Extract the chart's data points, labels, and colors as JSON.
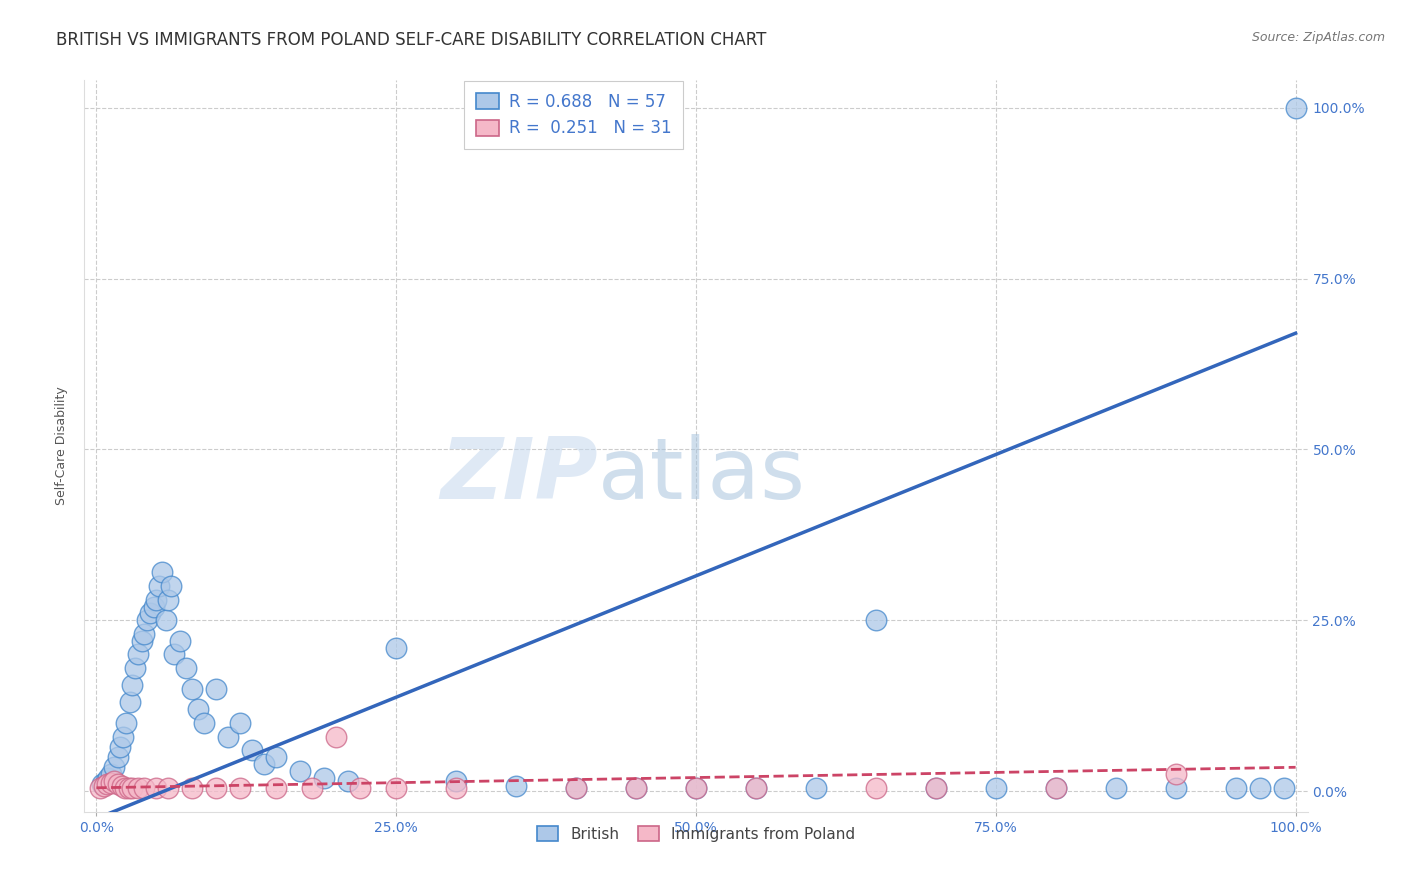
{
  "title": "BRITISH VS IMMIGRANTS FROM POLAND SELF-CARE DISABILITY CORRELATION CHART",
  "source": "Source: ZipAtlas.com",
  "ylabel": "Self-Care Disability",
  "ytick_values": [
    0,
    25,
    50,
    75,
    100
  ],
  "xtick_values": [
    0,
    25,
    50,
    75,
    100
  ],
  "watermark_zip": "ZIP",
  "watermark_atlas": "atlas",
  "legend_british_label": "R = 0.688   N = 57",
  "legend_poland_label": "R =  0.251   N = 31",
  "british_color": "#adc8e8",
  "british_edge_color": "#4488cc",
  "british_line_color": "#3366bb",
  "poland_color": "#f5b8c8",
  "poland_edge_color": "#cc6688",
  "poland_line_color": "#cc4466",
  "british_x": [
    0.5,
    0.8,
    1.0,
    1.2,
    1.5,
    1.8,
    2.0,
    2.2,
    2.5,
    2.8,
    3.0,
    3.2,
    3.5,
    3.8,
    4.0,
    4.2,
    4.5,
    4.8,
    5.0,
    5.2,
    5.5,
    5.8,
    6.0,
    6.2,
    6.5,
    7.0,
    7.5,
    8.0,
    8.5,
    9.0,
    10.0,
    11.0,
    12.0,
    13.0,
    14.0,
    15.0,
    17.0,
    19.0,
    21.0,
    25.0,
    30.0,
    35.0,
    40.0,
    45.0,
    50.0,
    55.0,
    60.0,
    65.0,
    70.0,
    75.0,
    80.0,
    85.0,
    90.0,
    95.0,
    97.0,
    99.0,
    100.0
  ],
  "british_y": [
    1.0,
    1.5,
    2.0,
    2.5,
    3.5,
    5.0,
    6.5,
    8.0,
    10.0,
    13.0,
    15.5,
    18.0,
    20.0,
    22.0,
    23.0,
    25.0,
    26.0,
    27.0,
    28.0,
    30.0,
    32.0,
    25.0,
    28.0,
    30.0,
    20.0,
    22.0,
    18.0,
    15.0,
    12.0,
    10.0,
    15.0,
    8.0,
    10.0,
    6.0,
    4.0,
    5.0,
    3.0,
    2.0,
    1.5,
    21.0,
    1.5,
    0.8,
    0.5,
    0.5,
    0.5,
    0.5,
    0.5,
    25.0,
    0.5,
    0.5,
    0.5,
    0.5,
    0.5,
    0.5,
    0.5,
    0.5,
    100.0
  ],
  "poland_x": [
    0.3,
    0.6,
    0.9,
    1.2,
    1.5,
    1.8,
    2.1,
    2.4,
    2.7,
    3.0,
    3.5,
    4.0,
    5.0,
    6.0,
    8.0,
    10.0,
    12.0,
    15.0,
    18.0,
    20.0,
    22.0,
    25.0,
    30.0,
    40.0,
    45.0,
    50.0,
    55.0,
    65.0,
    70.0,
    80.0,
    90.0
  ],
  "poland_y": [
    0.5,
    0.8,
    1.0,
    1.2,
    1.5,
    1.0,
    0.8,
    0.5,
    0.5,
    0.5,
    0.5,
    0.5,
    0.5,
    0.5,
    0.5,
    0.5,
    0.5,
    0.5,
    0.5,
    8.0,
    0.5,
    0.5,
    0.5,
    0.5,
    0.5,
    0.5,
    0.5,
    0.5,
    0.5,
    0.5,
    2.5
  ],
  "british_trendline_x": [
    0,
    100
  ],
  "british_trendline_y": [
    -4,
    67
  ],
  "poland_trendline_x": [
    0,
    100
  ],
  "poland_trendline_y": [
    0.5,
    3.5
  ],
  "xlim": [
    -1,
    101
  ],
  "ylim": [
    -3,
    104
  ],
  "background_color": "#ffffff",
  "grid_color": "#cccccc",
  "title_fontsize": 12,
  "axis_label_fontsize": 9,
  "tick_fontsize": 10,
  "legend_fontsize": 12,
  "source_fontsize": 9,
  "label_color": "#4477cc"
}
